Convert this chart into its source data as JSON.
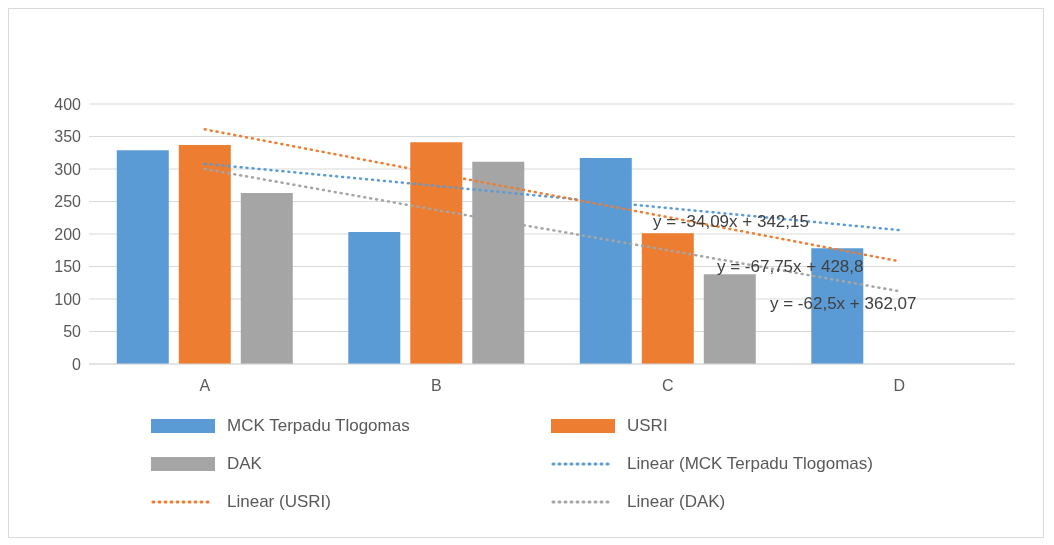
{
  "chart_data": {
    "type": "bar",
    "categories": [
      "A",
      "B",
      "C",
      "D"
    ],
    "series": [
      {
        "name": "MCK Terpadu Tlogomas",
        "color": "#5b9bd5",
        "values": [
          329,
          203,
          317,
          178
        ]
      },
      {
        "name": "USRI",
        "color": "#ed7d31",
        "values": [
          337,
          341,
          201,
          null
        ]
      },
      {
        "name": "DAK",
        "color": "#a5a5a5",
        "values": [
          263,
          311,
          138,
          null
        ]
      },
      {
        "name": "Linear (MCK Terpadu Tlogomas)",
        "type": "line",
        "line_style": "dotted",
        "color": "#5b9bd5",
        "values": [
          308,
          274,
          240,
          206
        ]
      },
      {
        "name": "Linear (USRI)",
        "type": "line",
        "line_style": "dotted",
        "color": "#ed7d31",
        "values": [
          361,
          293,
          226,
          158
        ]
      },
      {
        "name": "Linear (DAK)",
        "type": "line",
        "line_style": "dotted",
        "color": "#a5a5a5",
        "values": [
          300,
          237,
          175,
          112
        ]
      }
    ],
    "ylim": [
      0,
      400
    ],
    "yticks": [
      0,
      50,
      100,
      150,
      200,
      250,
      300,
      350,
      400
    ],
    "grid": "y",
    "legend": "bottom",
    "annotations": [
      "y = -34,09x + 342,15",
      "y = -67,75x + 428,8",
      "y = -62,5x + 362,07"
    ]
  }
}
